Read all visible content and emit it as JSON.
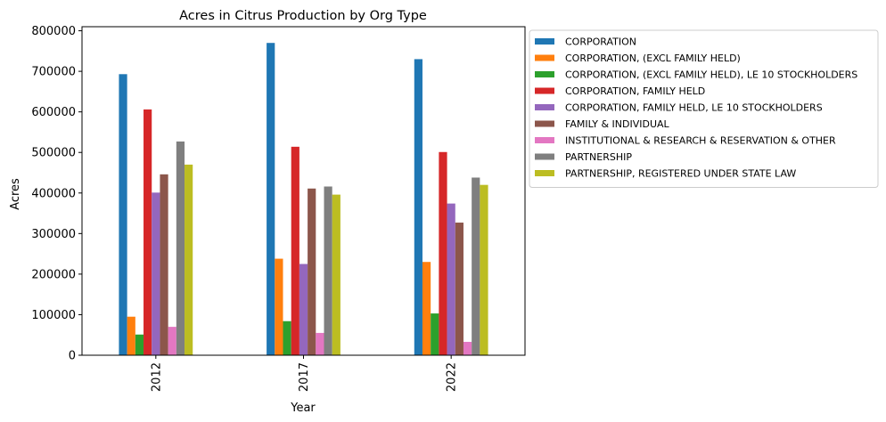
{
  "chart_data": {
    "type": "bar",
    "title": "Acres in Citrus Production by Org Type",
    "xlabel": "Year",
    "ylabel": "Acres",
    "categories": [
      "2012",
      "2017",
      "2022"
    ],
    "ylim": [
      0,
      810000
    ],
    "yticks": [
      0,
      100000,
      200000,
      300000,
      400000,
      500000,
      600000,
      700000,
      800000
    ],
    "legend_position": "outside-right",
    "grid": false,
    "series": [
      {
        "name": "CORPORATION",
        "color": "#1f77b4",
        "values": [
          693000,
          770000,
          730000
        ]
      },
      {
        "name": "CORPORATION, (EXCL FAMILY HELD)",
        "color": "#ff7f0e",
        "values": [
          95000,
          238000,
          230000
        ]
      },
      {
        "name": "CORPORATION, (EXCL FAMILY HELD), LE 10 STOCKHOLDERS",
        "color": "#2ca02c",
        "values": [
          51000,
          84000,
          103000
        ]
      },
      {
        "name": "CORPORATION, FAMILY HELD",
        "color": "#d62728",
        "values": [
          606000,
          514000,
          501000
        ]
      },
      {
        "name": "CORPORATION, FAMILY HELD, LE 10 STOCKHOLDERS",
        "color": "#9467bd",
        "values": [
          401000,
          225000,
          374000
        ]
      },
      {
        "name": "FAMILY & INDIVIDUAL",
        "color": "#8c564b",
        "values": [
          446000,
          411000,
          327000
        ]
      },
      {
        "name": "INSTITUTIONAL & RESEARCH & RESERVATION & OTHER",
        "color": "#e377c2",
        "values": [
          70000,
          55000,
          33000
        ]
      },
      {
        "name": "PARTNERSHIP",
        "color": "#7f7f7f",
        "values": [
          527000,
          416000,
          438000
        ]
      },
      {
        "name": "PARTNERSHIP, REGISTERED UNDER STATE LAW",
        "color": "#bcbd22",
        "values": [
          470000,
          396000,
          420000
        ]
      }
    ]
  }
}
